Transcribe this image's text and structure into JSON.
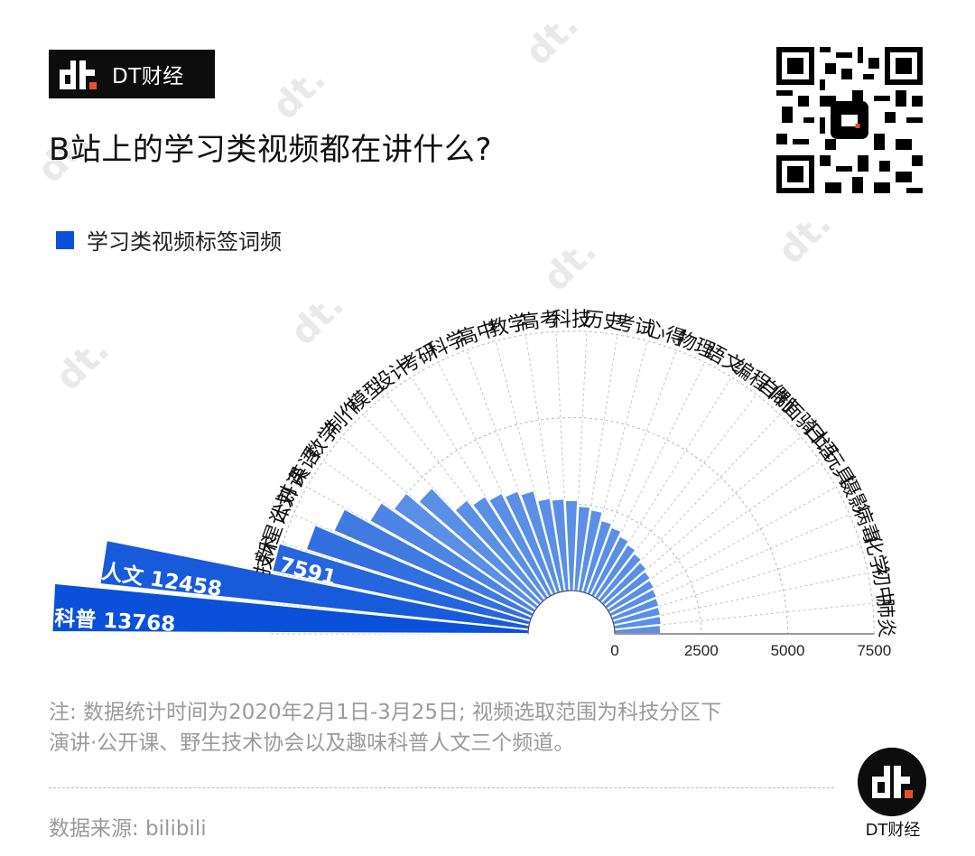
{
  "brand": {
    "name": "DT财经",
    "logo_text": "dt"
  },
  "header": {
    "title": "B站上的学习类视频都在讲什么?"
  },
  "legend": {
    "label": "学习类视频标签词频",
    "color": "#0a50d8"
  },
  "chart_data": {
    "type": "bar",
    "subtype": "polar-semicircle",
    "title": "B站上的学习类视频都在讲什么?",
    "series_name": "学习类视频标签词频",
    "categories": [
      "科普",
      "人文",
      "技术",
      "新星计划",
      "公开课",
      "英语",
      "数学",
      "制作",
      "模型",
      "设计",
      "考研",
      "科学",
      "高中",
      "教学",
      "高考",
      "科技",
      "历史",
      "考试",
      "心得",
      "物理",
      "语文",
      "编程",
      "自制",
      "假面骑士",
      "日语",
      "玩具",
      "摄影",
      "病毒",
      "化学",
      "初中",
      "肺炎"
    ],
    "values": [
      13768,
      12458,
      7591,
      6800,
      6240,
      5430,
      5030,
      4590,
      3660,
      3450,
      3290,
      3160,
      3030,
      2720,
      2660,
      2610,
      2450,
      2380,
      2140,
      2040,
      1900,
      1800,
      1700,
      1620,
      1540,
      1490,
      1440,
      1410,
      1380,
      1360,
      1330
    ],
    "labeled_values": {
      "科普": "13768",
      "人文": "12458",
      "技术": "7591"
    },
    "radial_axis": {
      "ticks": [
        "0",
        "2500",
        "5000",
        "7500"
      ],
      "range": [
        0,
        7500
      ]
    },
    "grid": true,
    "legend_position": "top-left",
    "colors": {
      "dark": "#0a50d8",
      "light": "#5b8fe6"
    }
  },
  "footer": {
    "note_line1": "注: 数据统计时间为2020年2月1日-3月25日; 视频选取范围为科技分区下",
    "note_line2": "演讲·公开课、野生技术协会以及趣味科普人文三个频道。",
    "source": "数据来源: bilibili",
    "brand_name": "DT财经"
  }
}
